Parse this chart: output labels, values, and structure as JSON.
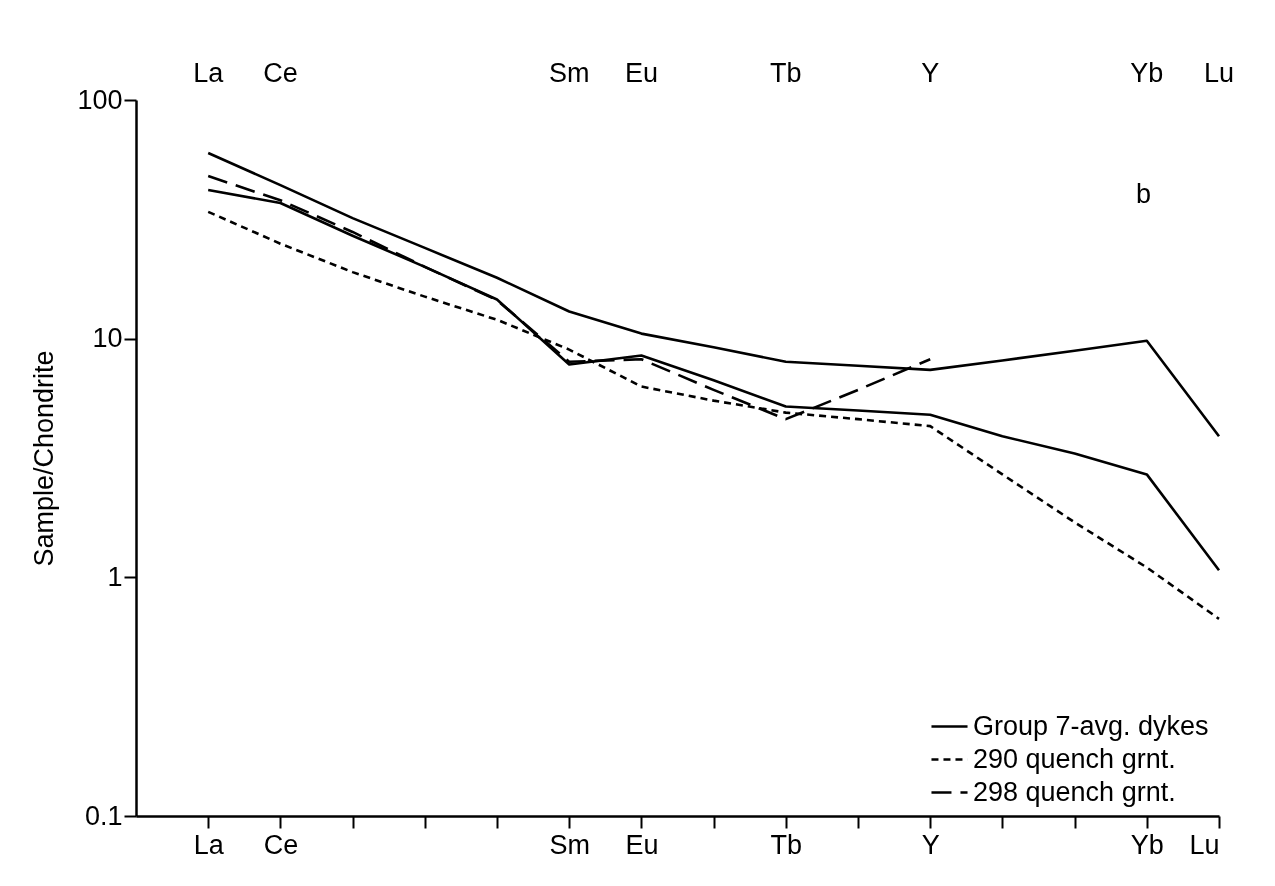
{
  "chart_data": {
    "type": "line",
    "ylabel": "Sample/Chondrite",
    "categories": [
      "La",
      "Ce",
      null,
      null,
      null,
      "Sm",
      "Eu",
      null,
      "Tb",
      null,
      "Y",
      null,
      null,
      "Yb",
      "Lu"
    ],
    "series": [
      {
        "name": "Group 7-avg. dykes",
        "color": "#000000",
        "line_style": "solid",
        "values": [
          60,
          44,
          32,
          24,
          18,
          13,
          10.5,
          9.2,
          8,
          7.7,
          7.4,
          8.1,
          8.9,
          9.8,
          3.9
        ]
      },
      {
        "color": "#000000",
        "line_style": "solid",
        "values": [
          42,
          37,
          27,
          20,
          14.6,
          7.8,
          8.5,
          6.7,
          5.2,
          5,
          4.8,
          3.9,
          3.3,
          2.7,
          1.07
        ]
      },
      {
        "name": "290 quench grnt.",
        "color": "#000000",
        "line_style": "dotted",
        "values": [
          34,
          25,
          19,
          15,
          12,
          9,
          6.3,
          5.5,
          4.9,
          4.6,
          4.3,
          2.7,
          1.7,
          1.1,
          0.67
        ]
      },
      {
        "name": "298 quench grnt.",
        "color": "#000000",
        "line_style": "dashed",
        "values": [
          48,
          38,
          28,
          20,
          14.5,
          8,
          8.2,
          6.1,
          4.6,
          6.1,
          8.2,
          null,
          null,
          null,
          null
        ]
      }
    ],
    "ylim": [
      0.1,
      100
    ],
    "yticks": [
      0.1,
      1,
      10,
      100
    ],
    "log": true,
    "grid": false,
    "legend": "bottom right",
    "marker": "none",
    "annotations": [
      "b"
    ]
  }
}
